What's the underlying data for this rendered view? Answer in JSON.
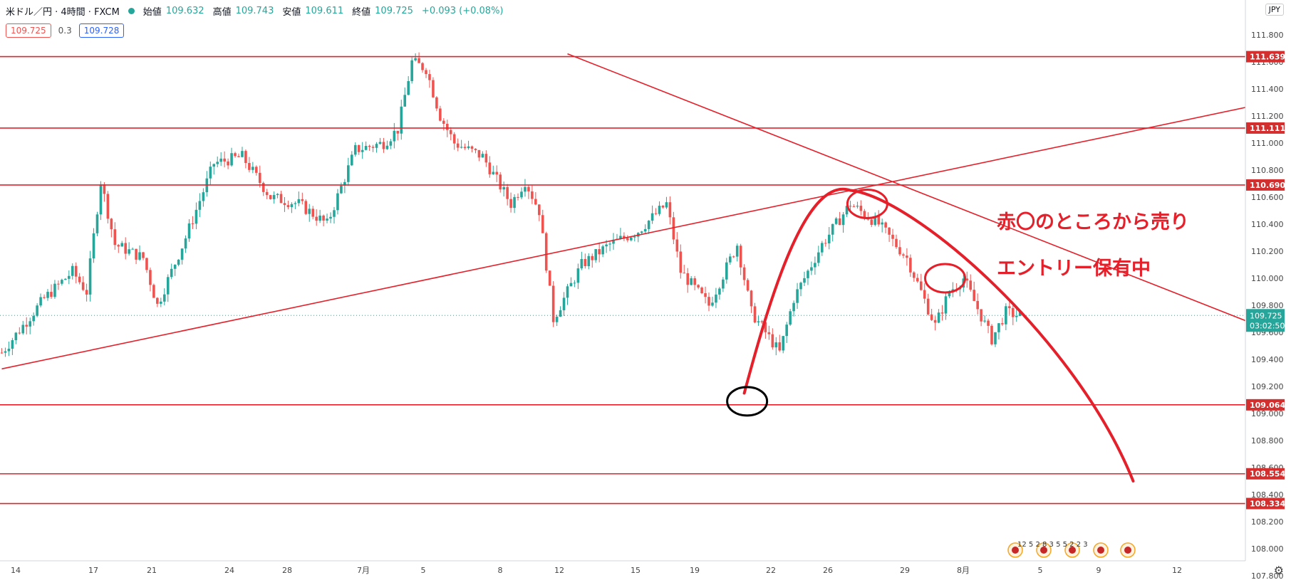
{
  "header": {
    "symbol": "米ドル／円 · 4時間 · FXCM",
    "open_label": "始値",
    "open": "109.632",
    "high_label": "高値",
    "high": "109.743",
    "low_label": "安値",
    "low": "109.611",
    "close_label": "終値",
    "close": "109.725",
    "change": "+0.093 (+0.08%)"
  },
  "trade": {
    "sell": "109.725",
    "spread": "0.3",
    "buy": "109.728"
  },
  "currency": "JPY",
  "annotations": {
    "line1": "赤〇のところから売り",
    "line2": "エントリー保有中"
  },
  "colors": {
    "up": "#26a69a",
    "down": "#ef5350",
    "line": "#e5202a",
    "annot": "#e5202a"
  },
  "chart_data": {
    "type": "candlestick",
    "ylim": [
      107.8,
      111.95
    ],
    "y_ticks": [
      "111.800",
      "111.600",
      "111.400",
      "111.200",
      "111.000",
      "110.800",
      "110.600",
      "110.400",
      "110.200",
      "110.000",
      "109.800",
      "109.600",
      "109.400",
      "109.200",
      "109.000",
      "108.800",
      "108.600",
      "108.400",
      "108.200",
      "108.000",
      "107.800"
    ],
    "x_ticks": [
      "14",
      "17",
      "21",
      "24",
      "28",
      "7月",
      "5",
      "8",
      "12",
      "15",
      "19",
      "22",
      "26",
      "29",
      "8月",
      "5",
      "9",
      "12"
    ],
    "horizontal_levels": [
      "111.639",
      "111.111",
      "110.690",
      "109.064",
      "108.554",
      "108.334"
    ],
    "price_labels": [
      {
        "label": "111.639",
        "price": 111.639
      },
      {
        "label": "111.111",
        "price": 111.111
      },
      {
        "label": "110.690",
        "price": 110.69
      },
      {
        "label": "109.064",
        "price": 109.064
      },
      {
        "label": "108.554",
        "price": 108.554
      },
      {
        "label": "108.334",
        "price": 108.334
      }
    ],
    "last_price": {
      "price": 109.725,
      "label": "109.725",
      "countdown": "03:02:50"
    },
    "bar_path": [
      [
        0,
        109.45
      ],
      [
        3,
        109.85
      ],
      [
        5,
        110.05
      ],
      [
        6,
        109.9
      ],
      [
        7,
        110.72
      ],
      [
        8,
        110.25
      ],
      [
        10,
        110.15
      ],
      [
        11,
        109.8
      ],
      [
        13,
        110.3
      ],
      [
        15,
        110.85
      ],
      [
        17,
        110.9
      ],
      [
        19,
        110.6
      ],
      [
        21,
        110.55
      ],
      [
        23,
        110.4
      ],
      [
        25,
        110.95
      ],
      [
        27,
        111.0
      ],
      [
        28,
        111.1
      ],
      [
        29,
        111.6
      ],
      [
        30,
        111.55
      ],
      [
        31,
        111.2
      ],
      [
        32,
        111.0
      ],
      [
        34,
        110.9
      ],
      [
        36,
        110.55
      ],
      [
        37,
        110.72
      ],
      [
        38,
        110.5
      ],
      [
        39,
        109.7
      ],
      [
        41,
        110.1
      ],
      [
        43,
        110.25
      ],
      [
        45,
        110.35
      ],
      [
        47,
        110.55
      ],
      [
        48,
        110.05
      ],
      [
        50,
        109.8
      ],
      [
        52,
        110.25
      ],
      [
        53,
        109.75
      ],
      [
        55,
        109.45
      ],
      [
        56,
        109.85
      ],
      [
        58,
        110.25
      ],
      [
        60,
        110.55
      ],
      [
        62,
        110.4
      ],
      [
        64,
        110.15
      ],
      [
        66,
        109.65
      ],
      [
        67,
        109.9
      ],
      [
        68,
        110.0
      ],
      [
        70,
        109.55
      ],
      [
        71,
        109.75
      ],
      [
        72,
        109.72
      ]
    ],
    "trend_lines": [
      {
        "from": [
          0,
          109.33
        ],
        "to": [
          121,
          111.99
        ]
      },
      {
        "from": [
          40,
          111.66
        ],
        "to": [
          126,
          108.12
        ]
      }
    ],
    "arc_curve": {
      "start": [
        52.5,
        109.15
      ],
      "top": [
        60,
        110.65
      ],
      "end": [
        80,
        108.5
      ]
    },
    "circle_marks": [
      {
        "at": [
          52.5,
          109.09
        ],
        "color": "black"
      },
      {
        "at": [
          61,
          110.55
        ],
        "color": "red"
      },
      {
        "at": [
          66.5,
          110.0
        ],
        "color": "red"
      }
    ],
    "event_icons": "12 5 2 8 3 5 5 2 2 3"
  }
}
